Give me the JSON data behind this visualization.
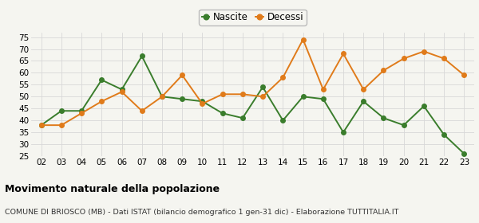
{
  "years": [
    "02",
    "03",
    "04",
    "05",
    "06",
    "07",
    "08",
    "09",
    "10",
    "11",
    "12",
    "13",
    "14",
    "15",
    "16",
    "17",
    "18",
    "19",
    "20",
    "21",
    "22",
    "23"
  ],
  "nascite": [
    38,
    44,
    44,
    57,
    53,
    67,
    50,
    49,
    48,
    43,
    41,
    54,
    40,
    50,
    49,
    35,
    48,
    41,
    38,
    46,
    34,
    26
  ],
  "decessi": [
    38,
    38,
    43,
    48,
    52,
    44,
    50,
    59,
    47,
    51,
    51,
    50,
    58,
    74,
    53,
    68,
    53,
    61,
    66,
    69,
    66,
    59
  ],
  "nascite_color": "#3a7d2c",
  "decessi_color": "#e07b1a",
  "title": "Movimento naturale della popolazione",
  "subtitle": "COMUNE DI BRIOSCO (MB) - Dati ISTAT (bilancio demografico 1 gen-31 dic) - Elaborazione TUTTITALIA.IT",
  "legend_nascite": "Nascite",
  "legend_decessi": "Decessi",
  "ylim": [
    25,
    77
  ],
  "yticks": [
    25,
    30,
    35,
    40,
    45,
    50,
    55,
    60,
    65,
    70,
    75
  ],
  "bg_color": "#f5f5f0",
  "grid_color": "#d8d8d8",
  "title_fontsize": 9,
  "subtitle_fontsize": 6.8,
  "tick_fontsize": 7.5,
  "legend_fontsize": 8.5,
  "marker_size": 4,
  "line_width": 1.4
}
